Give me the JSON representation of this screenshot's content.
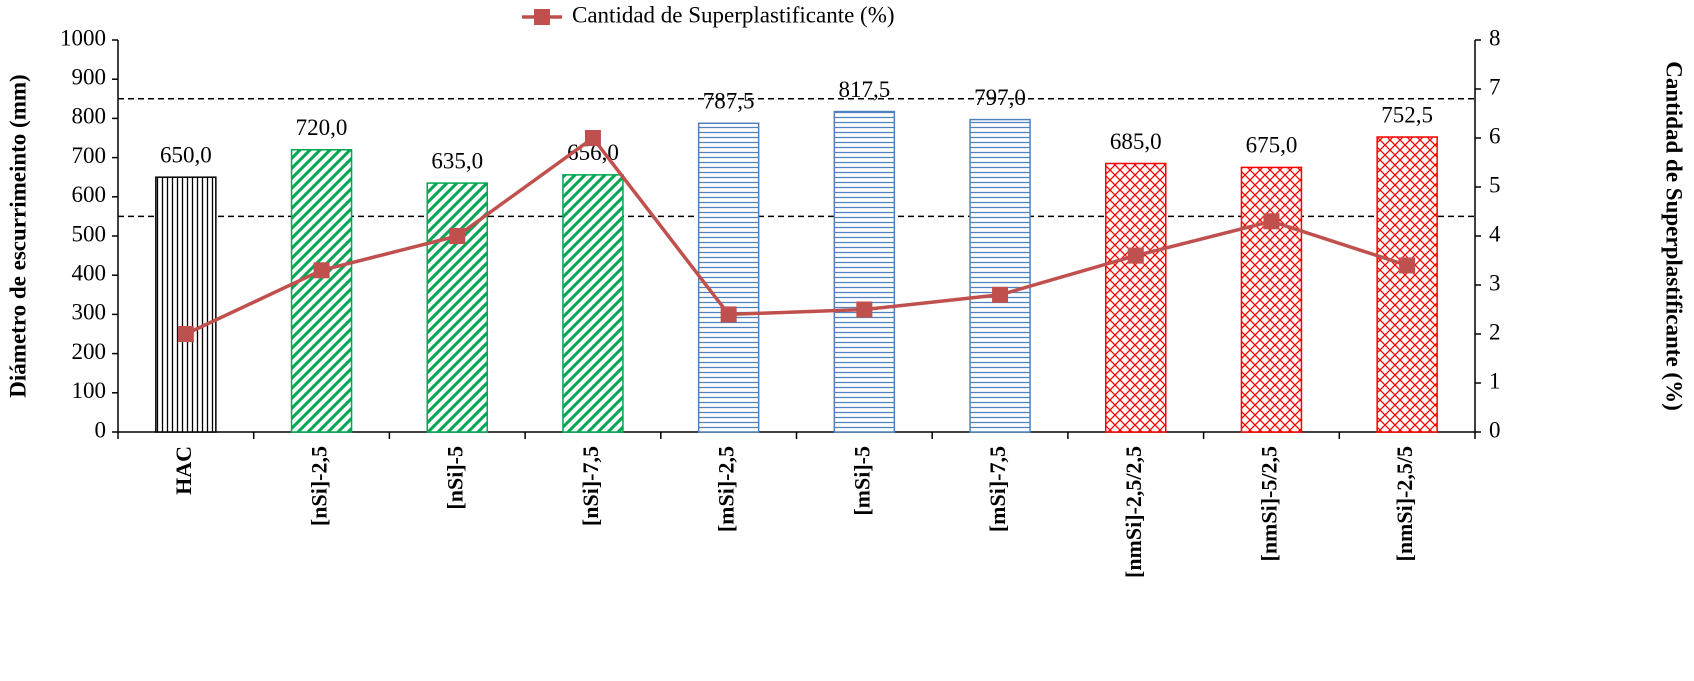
{
  "chart_data": {
    "type": "bar",
    "categories": [
      "HAC",
      "[nSi]-2,5",
      "[nSi]-5",
      "[nSi]-7,5",
      "[mSi]-2,5",
      "[mSi]-5",
      "[mSi]-7,5",
      "[nmSi]-2,5/2,5",
      "[nmSi]-5/2,5",
      "[nmSi]-2,5/5"
    ],
    "values": [
      650,
      720,
      635,
      656,
      787.5,
      817.5,
      797,
      685,
      675,
      752.5
    ],
    "value_labels": [
      "650,0",
      "720,0",
      "635,0",
      "656,0",
      "787,5",
      "817,5",
      "797,0",
      "685,0",
      "675,0",
      "752,5"
    ],
    "bar_colors": [
      "#000000",
      "#00a651",
      "#00a651",
      "#00a651",
      "#4f81bd",
      "#4f81bd",
      "#4f81bd",
      "#ff0000",
      "#ff0000",
      "#ff0000"
    ],
    "bar_patterns": [
      "vertical",
      "diagonal",
      "diagonal",
      "diagonal",
      "horizontal",
      "horizontal",
      "horizontal",
      "crosshatch",
      "crosshatch",
      "crosshatch"
    ],
    "series": [
      {
        "name": "Cantidad de Superplastificante (%)",
        "color": "#c0504d",
        "axis": "y2",
        "values": [
          2.0,
          3.3,
          4.0,
          6.0,
          2.4,
          2.5,
          2.8,
          3.6,
          4.3,
          3.4
        ]
      }
    ],
    "reference_lines": [
      550,
      850
    ],
    "ylabel": "Diámetro de escurrimeinto (mm)",
    "y2label": "Cantidad de Superplastificante (%)",
    "ylim": [
      0,
      1000
    ],
    "yticks": [
      0,
      100,
      200,
      300,
      400,
      500,
      600,
      700,
      800,
      900,
      1000
    ],
    "y2lim": [
      0,
      8
    ],
    "y2ticks": [
      0,
      1,
      2,
      3,
      4,
      5,
      6,
      7,
      8
    ],
    "legend": "top"
  }
}
